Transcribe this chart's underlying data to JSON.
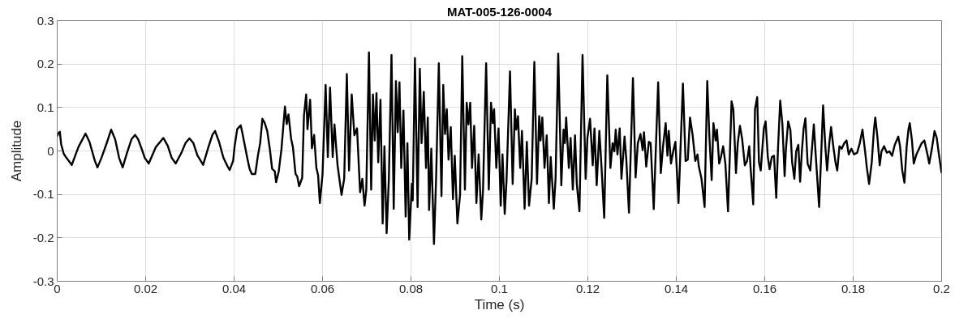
{
  "chart_data": {
    "type": "line",
    "title": "MAT-005-126-0004",
    "xlabel": "Time (s)",
    "ylabel": "Amplitude",
    "x": [
      0,
      0.0002,
      0.0006,
      0.0009,
      0.0015,
      0.0021,
      0.0033,
      0.0048,
      0.0064,
      0.0073,
      0.0085,
      0.0091,
      0.01,
      0.0113,
      0.0122,
      0.0131,
      0.014,
      0.0148,
      0.0158,
      0.0168,
      0.0176,
      0.0183,
      0.0192,
      0.0198,
      0.0207,
      0.0223,
      0.024,
      0.025,
      0.0259,
      0.0268,
      0.0281,
      0.029,
      0.0299,
      0.0308,
      0.0317,
      0.033,
      0.0342,
      0.0351,
      0.0357,
      0.0366,
      0.0376,
      0.0385,
      0.039,
      0.0398,
      0.0401,
      0.0407,
      0.0415,
      0.0419,
      0.0425,
      0.0431,
      0.0435,
      0.044,
      0.0448,
      0.0454,
      0.0459,
      0.0464,
      0.0469,
      0.0475,
      0.0481,
      0.0486,
      0.0492,
      0.0495,
      0.0501,
      0.0507,
      0.0515,
      0.0519,
      0.0523,
      0.0529,
      0.0533,
      0.0539,
      0.0543,
      0.0547,
      0.0554,
      0.0558,
      0.0563,
      0.0566,
      0.0572,
      0.0576,
      0.0581,
      0.0586,
      0.059,
      0.0594,
      0.06,
      0.0607,
      0.0612,
      0.0617,
      0.0623,
      0.0627,
      0.0634,
      0.0643,
      0.0649,
      0.0655,
      0.066,
      0.0666,
      0.0672,
      0.0678,
      0.0685,
      0.069,
      0.0695,
      0.0699,
      0.0705,
      0.071,
      0.0714,
      0.0718,
      0.0722,
      0.0726,
      0.0731,
      0.0736,
      0.074,
      0.0745,
      0.075,
      0.0756,
      0.0761,
      0.0766,
      0.077,
      0.0774,
      0.0778,
      0.0783,
      0.0788,
      0.0792,
      0.0796,
      0.0802,
      0.0804,
      0.0809,
      0.0815,
      0.082,
      0.0824,
      0.0829,
      0.0834,
      0.0838,
      0.0841,
      0.0846,
      0.0852,
      0.0857,
      0.0863,
      0.0869,
      0.0873,
      0.0877,
      0.0881,
      0.0885,
      0.089,
      0.0895,
      0.0899,
      0.0905,
      0.0911,
      0.0916,
      0.0922,
      0.0926,
      0.093,
      0.0934,
      0.0938,
      0.0943,
      0.0948,
      0.0953,
      0.0959,
      0.0963,
      0.097,
      0.0976,
      0.0981,
      0.0985,
      0.0988,
      0.0993,
      0.0998,
      0.1003,
      0.1007,
      0.1012,
      0.1016,
      0.1024,
      0.103,
      0.1035,
      0.1038,
      0.1042,
      0.1047,
      0.1051,
      0.1057,
      0.1062,
      0.1067,
      0.1073,
      0.1079,
      0.1085,
      0.109,
      0.1093,
      0.1097,
      0.1102,
      0.1107,
      0.1112,
      0.1116,
      0.1123,
      0.1127,
      0.1133,
      0.114,
      0.1145,
      0.1148,
      0.1151,
      0.1157,
      0.1161,
      0.1166,
      0.1171,
      0.1175,
      0.1181,
      0.1188,
      0.1195,
      0.1199,
      0.1205,
      0.1211,
      0.1215,
      0.122,
      0.1226,
      0.1231,
      0.1237,
      0.1244,
      0.1251,
      0.1256,
      0.126,
      0.1263,
      0.1267,
      0.1272,
      0.1276,
      0.1283,
      0.1287,
      0.1293,
      0.1302,
      0.1308,
      0.1313,
      0.1319,
      0.1324,
      0.1327,
      0.1332,
      0.1338,
      0.1342,
      0.1349,
      0.1359,
      0.1365,
      0.137,
      0.1376,
      0.138,
      0.1383,
      0.1388,
      0.1393,
      0.1398,
      0.1405,
      0.1415,
      0.1421,
      0.1426,
      0.1431,
      0.1437,
      0.1443,
      0.1448,
      0.1451,
      0.1457,
      0.1464,
      0.147,
      0.1475,
      0.148,
      0.1484,
      0.1489,
      0.1492,
      0.1497,
      0.1501,
      0.1506,
      0.1511,
      0.1517,
      0.1525,
      0.1529,
      0.1535,
      0.1539,
      0.1544,
      0.1549,
      0.1555,
      0.156,
      0.1565,
      0.1568,
      0.1574,
      0.1578,
      0.1583,
      0.1587,
      0.1591,
      0.1598,
      0.1602,
      0.1607,
      0.1611,
      0.1616,
      0.1621,
      0.1626,
      0.163,
      0.1635,
      0.164,
      0.1645,
      0.1648,
      0.1653,
      0.1658,
      0.1662,
      0.1667,
      0.1671,
      0.1676,
      0.168,
      0.1684,
      0.1688,
      0.1692,
      0.1697,
      0.1703,
      0.1711,
      0.1716,
      0.1723,
      0.1728,
      0.1732,
      0.1737,
      0.1741,
      0.1746,
      0.175,
      0.1755,
      0.176,
      0.1764,
      0.1769,
      0.1774,
      0.178,
      0.1785,
      0.179,
      0.1796,
      0.1802,
      0.1809,
      0.1815,
      0.1821,
      0.1827,
      0.1831,
      0.1836,
      0.1842,
      0.1847,
      0.185,
      0.1855,
      0.186,
      0.1864,
      0.187,
      0.1876,
      0.1882,
      0.1888,
      0.1894,
      0.1902,
      0.1906,
      0.1911,
      0.1916,
      0.1921,
      0.1925,
      0.1928,
      0.1933,
      0.1937,
      0.1943,
      0.1949,
      0.1955,
      0.1961,
      0.1968,
      0.1972,
      0.1978,
      0.1984,
      0.1989,
      0.1993,
      0.2
    ],
    "series": [
      {
        "color": "#000000",
        "values": [
          0.034,
          0.04,
          0.044,
          0.015,
          -0.007,
          -0.016,
          -0.032,
          0.009,
          0.04,
          0.021,
          -0.022,
          -0.038,
          -0.016,
          0.021,
          0.049,
          0.027,
          -0.016,
          -0.038,
          -0.004,
          0.027,
          0.037,
          0.027,
          0.002,
          -0.016,
          -0.029,
          0.009,
          0.03,
          0.012,
          -0.016,
          -0.029,
          -0.004,
          0.018,
          0.029,
          0.018,
          -0.01,
          -0.032,
          0.009,
          0.037,
          0.046,
          0.021,
          -0.016,
          -0.035,
          -0.044,
          -0.022,
          0.009,
          0.05,
          0.059,
          0.04,
          0.009,
          -0.022,
          -0.041,
          -0.053,
          -0.053,
          -0.01,
          0.018,
          0.074,
          0.065,
          0.046,
          0.003,
          -0.041,
          -0.047,
          -0.072,
          -0.047,
          0.003,
          0.102,
          0.062,
          0.084,
          0.028,
          0.009,
          -0.053,
          -0.059,
          -0.081,
          -0.062,
          0.081,
          0.13,
          0.05,
          0.118,
          0.006,
          0.037,
          -0.038,
          -0.056,
          -0.12,
          -0.054,
          0.152,
          -0.014,
          0.146,
          -0.014,
          0.061,
          -0.033,
          -0.101,
          -0.064,
          0.177,
          -0.045,
          0.13,
          0.036,
          0.052,
          -0.095,
          -0.064,
          -0.126,
          -0.089,
          0.227,
          -0.089,
          0.13,
          0.024,
          0.133,
          -0.026,
          0.118,
          -0.167,
          0.011,
          -0.189,
          -0.064,
          0.221,
          -0.133,
          0.161,
          0.043,
          0.158,
          -0.039,
          0.093,
          -0.151,
          0.018,
          -0.204,
          -0.076,
          -0.114,
          0.214,
          -0.129,
          0.189,
          0.018,
          0.136,
          -0.039,
          0.077,
          -0.136,
          0.005,
          -0.214,
          -0.058,
          0.202,
          -0.104,
          0.152,
          0.039,
          0.096,
          -0.02,
          0.055,
          -0.111,
          -0.011,
          -0.167,
          -0.101,
          0.218,
          -0.089,
          0.111,
          0.061,
          0.111,
          -0.039,
          0.058,
          -0.12,
          -0.008,
          -0.158,
          -0.089,
          0.202,
          -0.089,
          0.111,
          0.064,
          0.096,
          -0.039,
          0.052,
          -0.126,
          -0.008,
          -0.145,
          -0.07,
          0.183,
          -0.076,
          0.096,
          0.049,
          0.08,
          -0.039,
          0.046,
          -0.133,
          0.021,
          -0.126,
          -0.064,
          0.205,
          -0.076,
          0.08,
          0.024,
          0.077,
          -0.039,
          0.036,
          -0.12,
          -0.014,
          -0.133,
          -0.064,
          0.224,
          -0.079,
          0.049,
          0.018,
          0.077,
          -0.039,
          0.03,
          -0.089,
          0.036,
          -0.076,
          -0.139,
          0.221,
          -0.064,
          0.03,
          0.074,
          -0.033,
          0.052,
          -0.079,
          0.046,
          -0.039,
          -0.154,
          0.174,
          -0.039,
          0.018,
          -0.001,
          0.049,
          -0.008,
          0.052,
          -0.064,
          0.033,
          -0.02,
          -0.142,
          0.168,
          -0.061,
          0.018,
          0.039,
          0.002,
          0.043,
          -0.036,
          0.021,
          0.018,
          -0.134,
          0.158,
          -0.051,
          0.011,
          0.064,
          -0.011,
          0.046,
          -0.029,
          -0.001,
          0.021,
          -0.12,
          0.155,
          -0.023,
          -0.02,
          0.077,
          0.036,
          -0.023,
          -0.008,
          -0.036,
          -0.064,
          -0.129,
          0.161,
          0.03,
          -0.067,
          0.064,
          0.024,
          0.049,
          -0.029,
          -0.014,
          0.011,
          -0.029,
          -0.139,
          0.114,
          0.096,
          -0.051,
          0.018,
          0.058,
          0.027,
          -0.033,
          -0.023,
          0.011,
          -0.039,
          -0.123,
          0.096,
          0.124,
          -0.026,
          -0.045,
          0.052,
          0.068,
          -0.014,
          -0.042,
          -0.014,
          -0.011,
          -0.108,
          0.005,
          0.116,
          0.061,
          -0.058,
          0.005,
          0.068,
          0.049,
          -0.026,
          -0.064,
          -0.001,
          0.014,
          -0.071,
          -0.001,
          0.052,
          0.075,
          -0.029,
          -0.045,
          0.061,
          -0.02,
          -0.129,
          -0.001,
          0.105,
          0.011,
          -0.045,
          0.018,
          0.055,
          0.011,
          -0.026,
          -0.045,
          0.011,
          0.005,
          0.018,
          0.024,
          -0.008,
          0.005,
          -0.008,
          -0.004,
          0.018,
          0.049,
          -0.001,
          -0.039,
          -0.076,
          -0.026,
          0.049,
          0.077,
          0.03,
          -0.033,
          -0.001,
          0.011,
          -0.004,
          -0.001,
          -0.011,
          0.014,
          0.033,
          0.011,
          -0.045,
          -0.073,
          0.011,
          0.049,
          0.064,
          0.024,
          -0.029,
          -0.008,
          0.005,
          0.018,
          0.024,
          -0.008,
          -0.029,
          0.005,
          0.046,
          0.03,
          -0.001,
          -0.051
        ]
      }
    ],
    "xlim": [
      0,
      0.2
    ],
    "ylim": [
      -0.3,
      0.3
    ],
    "xticks": [
      0,
      0.02,
      0.04,
      0.06,
      0.08,
      0.1,
      0.12,
      0.14,
      0.16,
      0.18,
      0.2
    ],
    "yticks": [
      -0.3,
      -0.2,
      -0.1,
      0,
      0.1,
      0.2,
      0.3
    ],
    "grid": true,
    "line_style": "solid"
  }
}
